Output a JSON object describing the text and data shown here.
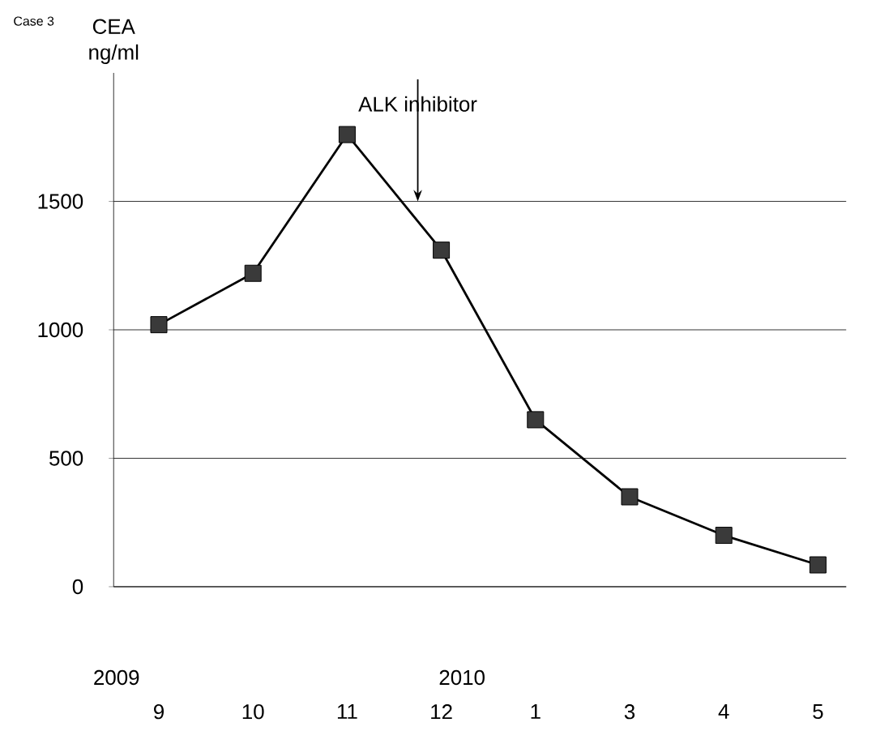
{
  "chart_data": {
    "type": "line",
    "title": "Case 3",
    "ylabel": "CEA ng/ml",
    "categories": [
      "9",
      "10",
      "11",
      "12",
      "1",
      "3",
      "4",
      "5"
    ],
    "series": [
      {
        "color": "#3a3a3a",
        "values": [
          1020,
          1220,
          1760,
          1310,
          650,
          350,
          200,
          85
        ]
      }
    ],
    "ylim": [
      0,
      2000
    ],
    "yticks": [
      0,
      500,
      1000,
      1500
    ],
    "grid": "y",
    "marker": "square",
    "line_style": "solid",
    "annotations": [
      "ALK inhibitor",
      "2009",
      "2010"
    ]
  }
}
